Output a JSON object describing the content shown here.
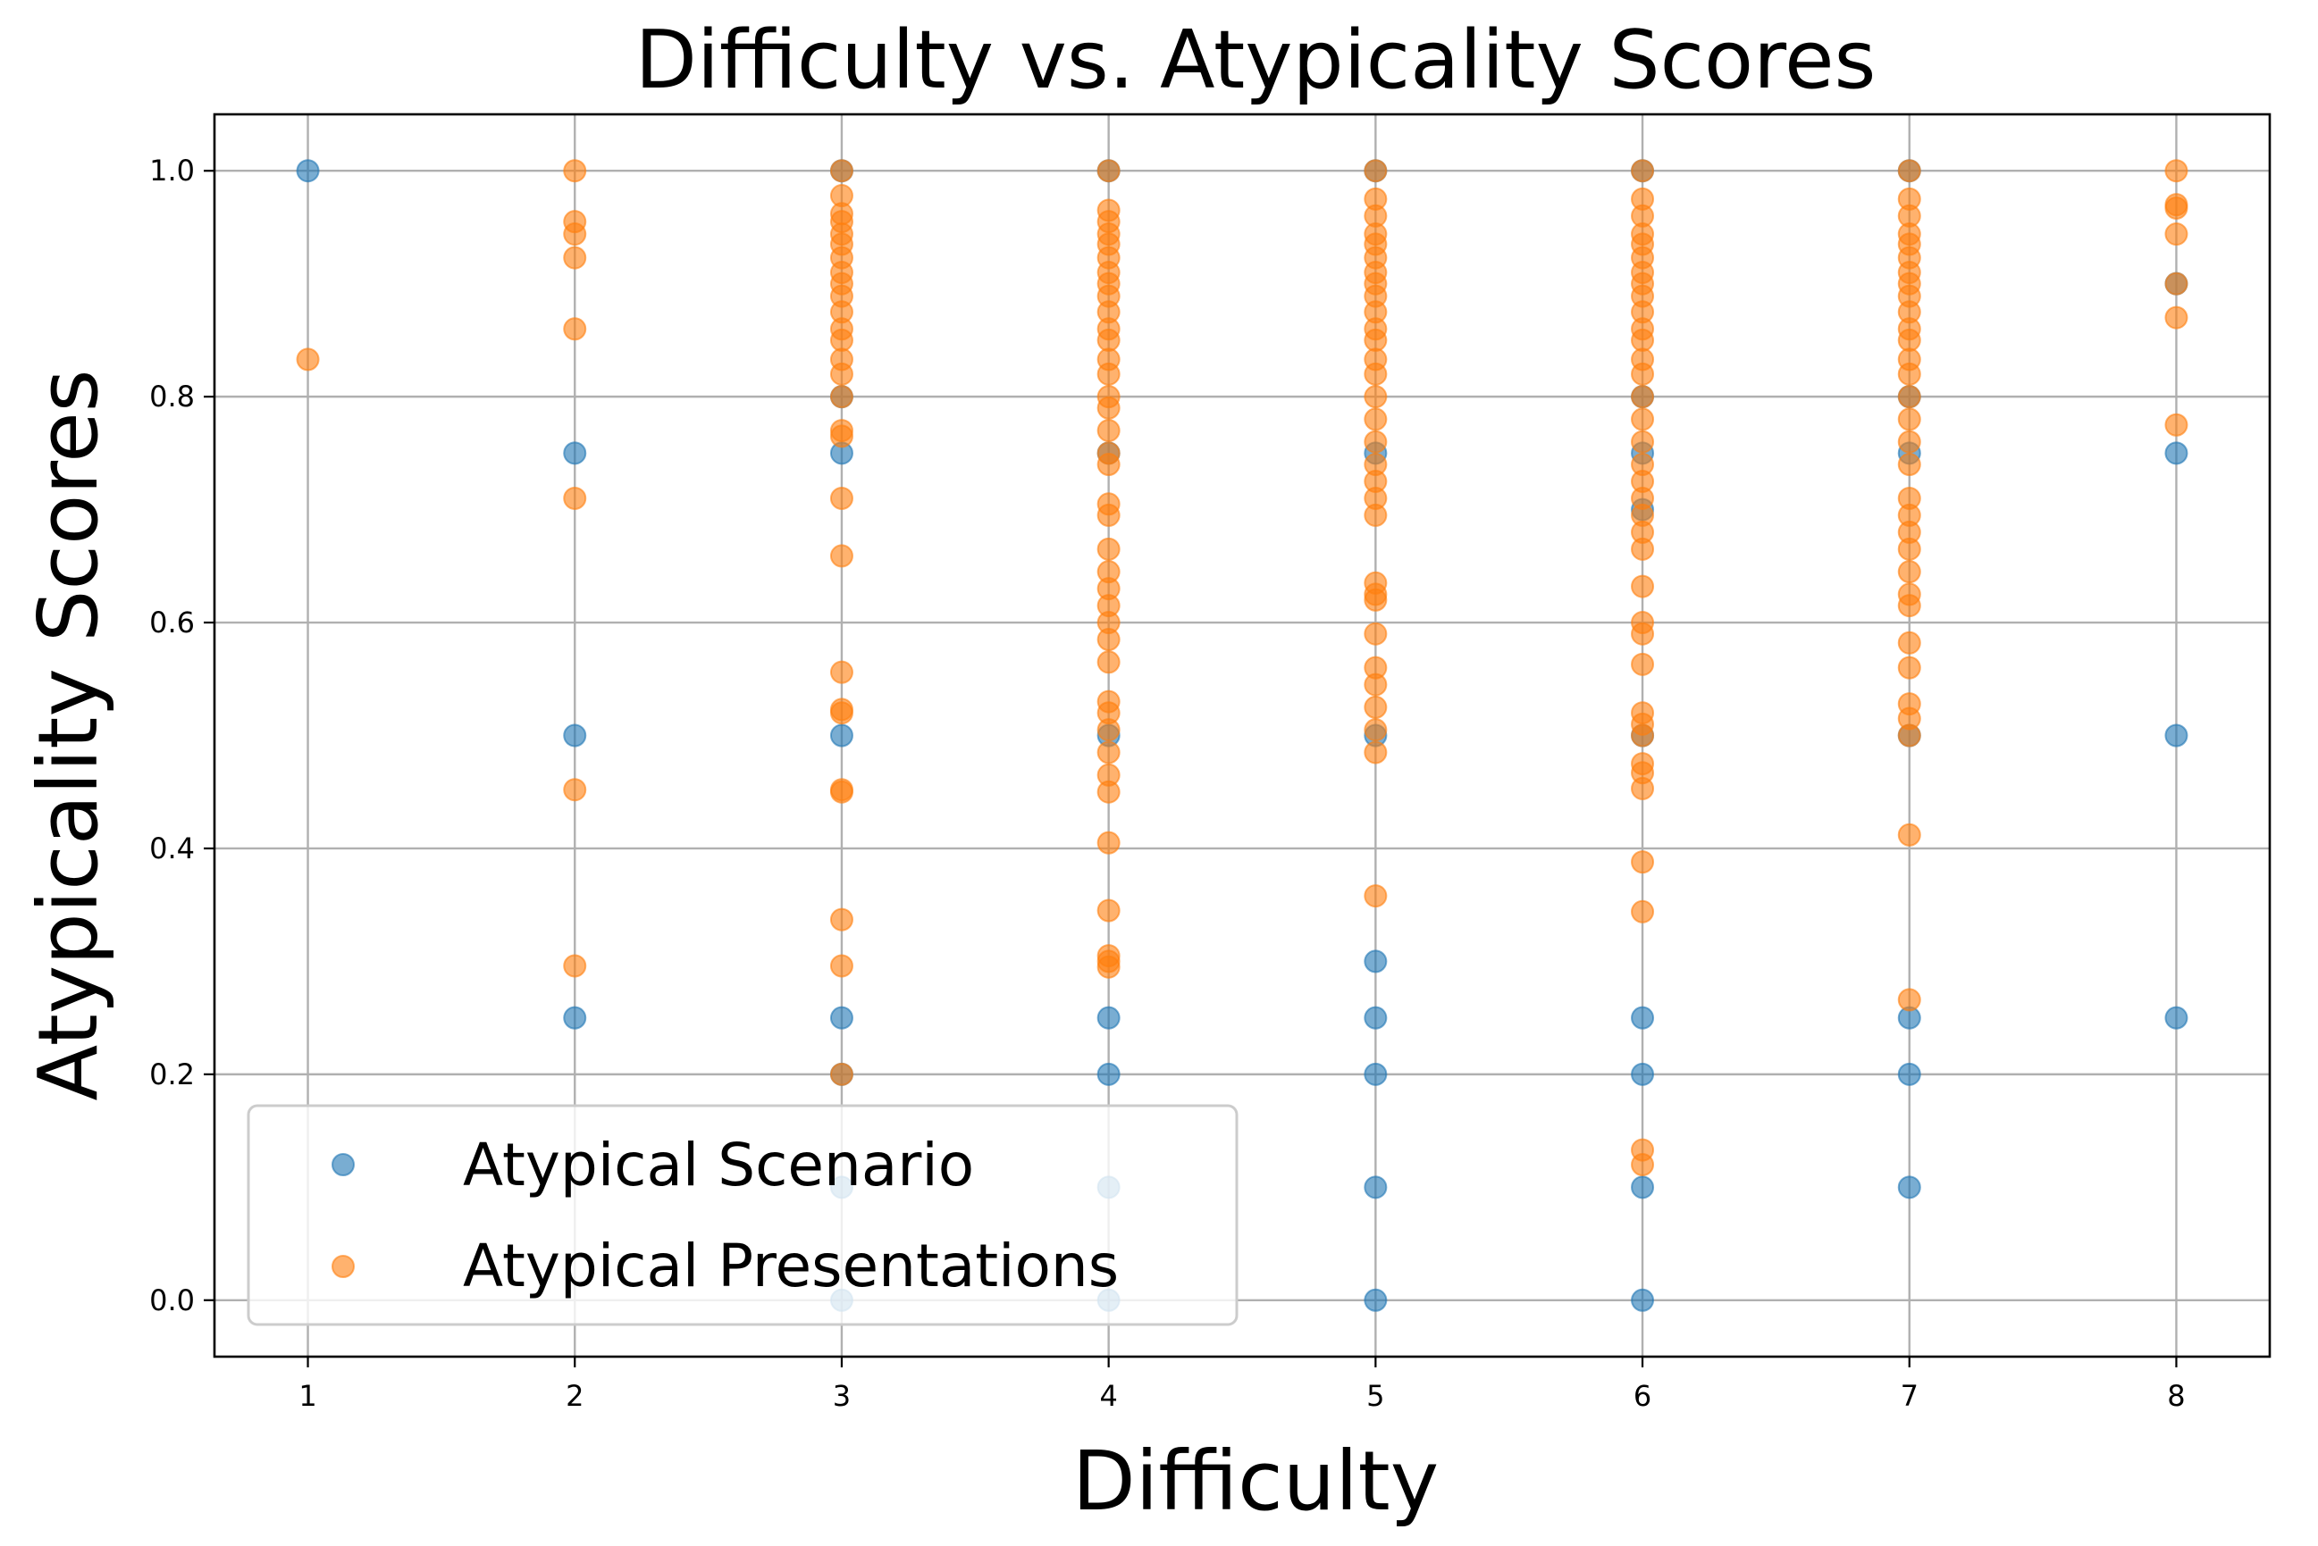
{
  "chart_data": {
    "type": "scatter",
    "title": "Difficulty vs. Atypicality Scores",
    "xlabel": "Difficulty",
    "ylabel": "Atypicality Scores",
    "xlim": [
      0.65,
      8.35
    ],
    "ylim": [
      -0.05,
      1.05
    ],
    "x_ticks": [
      "1",
      "2",
      "3",
      "4",
      "5",
      "6",
      "7",
      "8"
    ],
    "y_ticks": [
      "0.0",
      "0.2",
      "0.4",
      "0.6",
      "0.8",
      "1.0"
    ],
    "grid": true,
    "legend_position": "lower-left",
    "series": [
      {
        "name": "Atypical Scenario",
        "color": "#1f77b4",
        "points": [
          [
            1,
            1.0
          ],
          [
            2,
            0.75
          ],
          [
            2,
            0.5
          ],
          [
            2,
            0.25
          ],
          [
            3,
            1.0
          ],
          [
            3,
            0.8
          ],
          [
            3,
            0.75
          ],
          [
            3,
            0.5
          ],
          [
            3,
            0.25
          ],
          [
            3,
            0.2
          ],
          [
            3,
            0.1
          ],
          [
            3,
            0.0
          ],
          [
            4,
            1.0
          ],
          [
            4,
            0.75
          ],
          [
            4,
            0.5
          ],
          [
            4,
            0.25
          ],
          [
            4,
            0.2
          ],
          [
            4,
            0.1
          ],
          [
            4,
            0.0
          ],
          [
            5,
            1.0
          ],
          [
            5,
            0.75
          ],
          [
            5,
            0.5
          ],
          [
            5,
            0.3
          ],
          [
            5,
            0.25
          ],
          [
            5,
            0.2
          ],
          [
            5,
            0.1
          ],
          [
            5,
            0.0
          ],
          [
            6,
            1.0
          ],
          [
            6,
            0.8
          ],
          [
            6,
            0.75
          ],
          [
            6,
            0.7
          ],
          [
            6,
            0.5
          ],
          [
            6,
            0.25
          ],
          [
            6,
            0.2
          ],
          [
            6,
            0.1
          ],
          [
            6,
            0.0
          ],
          [
            7,
            1.0
          ],
          [
            7,
            0.8
          ],
          [
            7,
            0.75
          ],
          [
            7,
            0.5
          ],
          [
            7,
            0.25
          ],
          [
            7,
            0.2
          ],
          [
            7,
            0.1
          ],
          [
            8,
            0.9
          ],
          [
            8,
            0.75
          ],
          [
            8,
            0.5
          ],
          [
            8,
            0.25
          ]
        ]
      },
      {
        "name": "Atypical Presentations",
        "color": "#ff7f0e",
        "points": [
          [
            1,
            0.833
          ],
          [
            2,
            1.0
          ],
          [
            2,
            0.955
          ],
          [
            2,
            0.944
          ],
          [
            2,
            0.923
          ],
          [
            2,
            0.86
          ],
          [
            2,
            0.71
          ],
          [
            2,
            0.452
          ],
          [
            2,
            0.296
          ],
          [
            3,
            1.0
          ],
          [
            3,
            0.978
          ],
          [
            3,
            0.962
          ],
          [
            3,
            0.955
          ],
          [
            3,
            0.944
          ],
          [
            3,
            0.935
          ],
          [
            3,
            0.923
          ],
          [
            3,
            0.91
          ],
          [
            3,
            0.9
          ],
          [
            3,
            0.889
          ],
          [
            3,
            0.875
          ],
          [
            3,
            0.86
          ],
          [
            3,
            0.85
          ],
          [
            3,
            0.833
          ],
          [
            3,
            0.82
          ],
          [
            3,
            0.8
          ],
          [
            3,
            0.77
          ],
          [
            3,
            0.765
          ],
          [
            3,
            0.71
          ],
          [
            3,
            0.659
          ],
          [
            3,
            0.556
          ],
          [
            3,
            0.523
          ],
          [
            3,
            0.52
          ],
          [
            3,
            0.452
          ],
          [
            3,
            0.45
          ],
          [
            3,
            0.337
          ],
          [
            3,
            0.296
          ],
          [
            3,
            0.2
          ],
          [
            4,
            1.0
          ],
          [
            4,
            0.965
          ],
          [
            4,
            0.955
          ],
          [
            4,
            0.944
          ],
          [
            4,
            0.935
          ],
          [
            4,
            0.923
          ],
          [
            4,
            0.91
          ],
          [
            4,
            0.9
          ],
          [
            4,
            0.889
          ],
          [
            4,
            0.875
          ],
          [
            4,
            0.86
          ],
          [
            4,
            0.85
          ],
          [
            4,
            0.833
          ],
          [
            4,
            0.82
          ],
          [
            4,
            0.8
          ],
          [
            4,
            0.79
          ],
          [
            4,
            0.77
          ],
          [
            4,
            0.75
          ],
          [
            4,
            0.74
          ],
          [
            4,
            0.705
          ],
          [
            4,
            0.695
          ],
          [
            4,
            0.665
          ],
          [
            4,
            0.645
          ],
          [
            4,
            0.63
          ],
          [
            4,
            0.615
          ],
          [
            4,
            0.6
          ],
          [
            4,
            0.585
          ],
          [
            4,
            0.565
          ],
          [
            4,
            0.53
          ],
          [
            4,
            0.52
          ],
          [
            4,
            0.505
          ],
          [
            4,
            0.485
          ],
          [
            4,
            0.465
          ],
          [
            4,
            0.45
          ],
          [
            4,
            0.405
          ],
          [
            4,
            0.345
          ],
          [
            4,
            0.305
          ],
          [
            4,
            0.3
          ],
          [
            4,
            0.295
          ],
          [
            5,
            1.0
          ],
          [
            5,
            0.975
          ],
          [
            5,
            0.96
          ],
          [
            5,
            0.944
          ],
          [
            5,
            0.935
          ],
          [
            5,
            0.923
          ],
          [
            5,
            0.91
          ],
          [
            5,
            0.9
          ],
          [
            5,
            0.889
          ],
          [
            5,
            0.875
          ],
          [
            5,
            0.86
          ],
          [
            5,
            0.85
          ],
          [
            5,
            0.833
          ],
          [
            5,
            0.82
          ],
          [
            5,
            0.8
          ],
          [
            5,
            0.78
          ],
          [
            5,
            0.76
          ],
          [
            5,
            0.74
          ],
          [
            5,
            0.725
          ],
          [
            5,
            0.71
          ],
          [
            5,
            0.695
          ],
          [
            5,
            0.635
          ],
          [
            5,
            0.625
          ],
          [
            5,
            0.62
          ],
          [
            5,
            0.59
          ],
          [
            5,
            0.56
          ],
          [
            5,
            0.545
          ],
          [
            5,
            0.525
          ],
          [
            5,
            0.505
          ],
          [
            5,
            0.485
          ],
          [
            5,
            0.358
          ],
          [
            6,
            1.0
          ],
          [
            6,
            0.975
          ],
          [
            6,
            0.96
          ],
          [
            6,
            0.944
          ],
          [
            6,
            0.935
          ],
          [
            6,
            0.923
          ],
          [
            6,
            0.91
          ],
          [
            6,
            0.9
          ],
          [
            6,
            0.889
          ],
          [
            6,
            0.875
          ],
          [
            6,
            0.86
          ],
          [
            6,
            0.85
          ],
          [
            6,
            0.833
          ],
          [
            6,
            0.82
          ],
          [
            6,
            0.8
          ],
          [
            6,
            0.78
          ],
          [
            6,
            0.76
          ],
          [
            6,
            0.74
          ],
          [
            6,
            0.725
          ],
          [
            6,
            0.71
          ],
          [
            6,
            0.695
          ],
          [
            6,
            0.68
          ],
          [
            6,
            0.665
          ],
          [
            6,
            0.632
          ],
          [
            6,
            0.6
          ],
          [
            6,
            0.59
          ],
          [
            6,
            0.563
          ],
          [
            6,
            0.52
          ],
          [
            6,
            0.51
          ],
          [
            6,
            0.5
          ],
          [
            6,
            0.475
          ],
          [
            6,
            0.467
          ],
          [
            6,
            0.453
          ],
          [
            6,
            0.388
          ],
          [
            6,
            0.344
          ],
          [
            6,
            0.133
          ],
          [
            6,
            0.12
          ],
          [
            7,
            1.0
          ],
          [
            7,
            0.975
          ],
          [
            7,
            0.96
          ],
          [
            7,
            0.944
          ],
          [
            7,
            0.935
          ],
          [
            7,
            0.923
          ],
          [
            7,
            0.91
          ],
          [
            7,
            0.9
          ],
          [
            7,
            0.889
          ],
          [
            7,
            0.875
          ],
          [
            7,
            0.86
          ],
          [
            7,
            0.85
          ],
          [
            7,
            0.833
          ],
          [
            7,
            0.82
          ],
          [
            7,
            0.8
          ],
          [
            7,
            0.78
          ],
          [
            7,
            0.76
          ],
          [
            7,
            0.74
          ],
          [
            7,
            0.71
          ],
          [
            7,
            0.695
          ],
          [
            7,
            0.68
          ],
          [
            7,
            0.665
          ],
          [
            7,
            0.645
          ],
          [
            7,
            0.625
          ],
          [
            7,
            0.615
          ],
          [
            7,
            0.582
          ],
          [
            7,
            0.56
          ],
          [
            7,
            0.528
          ],
          [
            7,
            0.515
          ],
          [
            7,
            0.5
          ],
          [
            7,
            0.412
          ],
          [
            7,
            0.266
          ],
          [
            8,
            1.0
          ],
          [
            8,
            0.97
          ],
          [
            8,
            0.967
          ],
          [
            8,
            0.944
          ],
          [
            8,
            0.9
          ],
          [
            8,
            0.87
          ],
          [
            8,
            0.775
          ]
        ]
      }
    ]
  }
}
